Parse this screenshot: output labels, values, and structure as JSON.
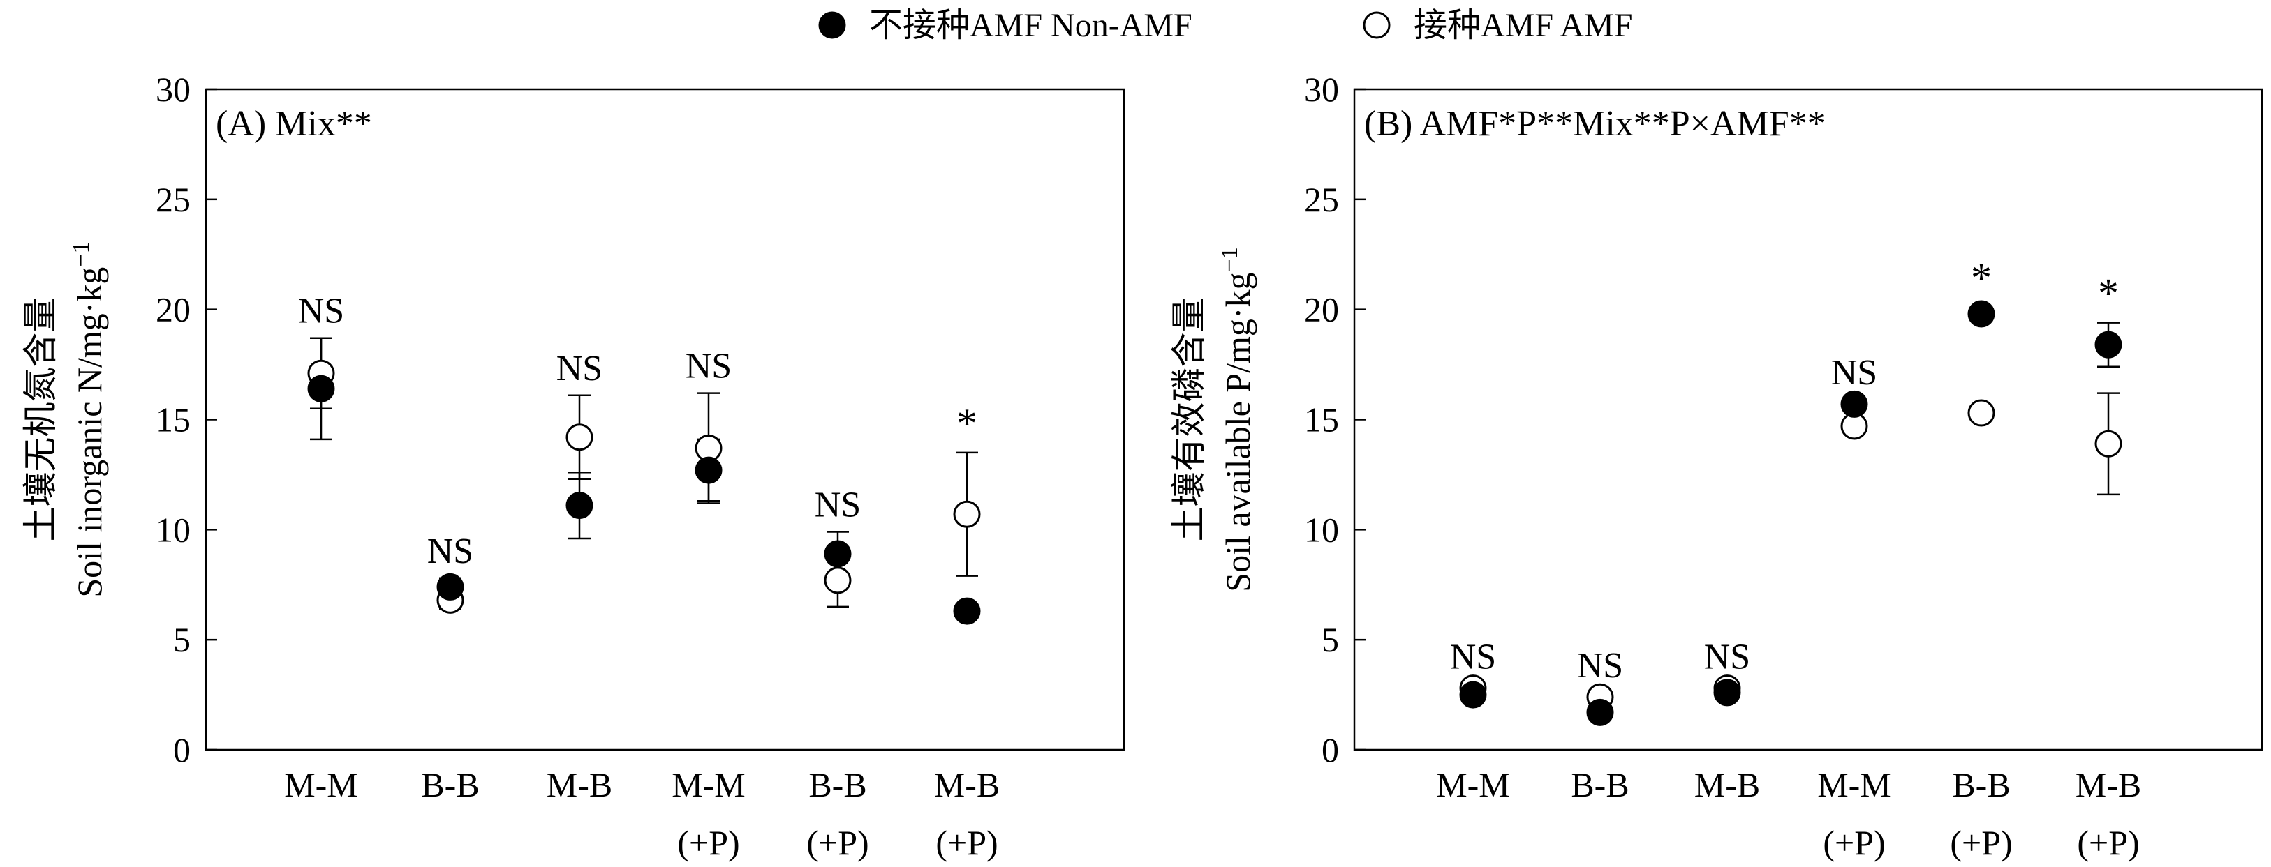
{
  "legend": {
    "items": [
      {
        "label": "不接种AMF Non-AMF",
        "marker": "filled"
      },
      {
        "label": "接种AMF AMF",
        "marker": "open"
      }
    ],
    "position": "top-center"
  },
  "colors": {
    "axis": "#000000",
    "filled": "#000000",
    "open": "#ffffff"
  },
  "chart_data": [
    {
      "type": "scatter",
      "panel_label": "(A) Mix**",
      "ylabel_cn": "土壤无机氮含量",
      "ylabel_en": "Soil inorganic N/mg·kg",
      "ylabel_sup": "−1",
      "ylim": [
        0,
        30
      ],
      "yticks": [
        0,
        5,
        10,
        15,
        20,
        25,
        30
      ],
      "grid": false,
      "categories": [
        {
          "line1": "M-M",
          "line2": ""
        },
        {
          "line1": "B-B",
          "line2": ""
        },
        {
          "line1": "M-B",
          "line2": ""
        },
        {
          "line1": "M-M",
          "line2": "(+P)"
        },
        {
          "line1": "B-B",
          "line2": "(+P)"
        },
        {
          "line1": "M-B",
          "line2": "(+P)"
        }
      ],
      "series": [
        {
          "name": "Non-AMF",
          "marker": "filled",
          "values": [
            16.4,
            7.4,
            11.1,
            12.7,
            8.9,
            6.3
          ],
          "errors": [
            2.3,
            0.4,
            1.5,
            1.4,
            1.0,
            0.3
          ]
        },
        {
          "name": "AMF",
          "marker": "open",
          "values": [
            17.1,
            6.8,
            14.2,
            13.7,
            7.7,
            10.7
          ],
          "errors": [
            1.6,
            0.4,
            1.9,
            2.5,
            1.2,
            2.8
          ]
        }
      ],
      "annotations": [
        "NS",
        "NS",
        "NS",
        "NS",
        "NS",
        "*"
      ]
    },
    {
      "type": "scatter",
      "panel_label": "(B) AMF*P**Mix**P×AMF**",
      "ylabel_cn": "土壤有效磷含量",
      "ylabel_en": "Soil available P/mg·kg",
      "ylabel_sup": "−1",
      "ylim": [
        0,
        30
      ],
      "yticks": [
        0,
        5,
        10,
        15,
        20,
        25,
        30
      ],
      "grid": false,
      "categories": [
        {
          "line1": "M-M",
          "line2": ""
        },
        {
          "line1": "B-B",
          "line2": ""
        },
        {
          "line1": "M-B",
          "line2": ""
        },
        {
          "line1": "M-M",
          "line2": "(+P)"
        },
        {
          "line1": "B-B",
          "line2": "(+P)"
        },
        {
          "line1": "M-B",
          "line2": "(+P)"
        }
      ],
      "series": [
        {
          "name": "Non-AMF",
          "marker": "filled",
          "values": [
            2.5,
            1.7,
            2.6,
            15.7,
            19.8,
            18.4
          ],
          "errors": [
            0.2,
            0.2,
            0.2,
            0.2,
            0.3,
            1.0
          ]
        },
        {
          "name": "AMF",
          "marker": "open",
          "values": [
            2.8,
            2.4,
            2.8,
            14.7,
            15.3,
            13.9
          ],
          "errors": [
            0.2,
            0.2,
            0.2,
            0.3,
            0.3,
            2.3
          ]
        }
      ],
      "annotations": [
        "NS",
        "NS",
        "NS",
        "NS",
        "*",
        "*"
      ]
    }
  ]
}
